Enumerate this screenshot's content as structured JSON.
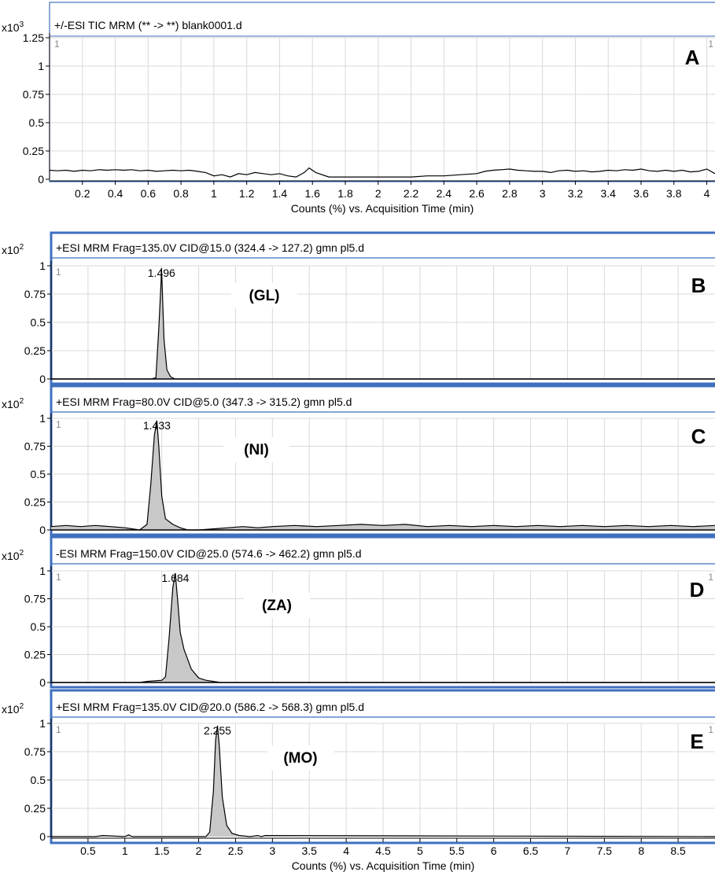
{
  "chart_data": [
    {
      "id": "A",
      "type": "line",
      "title": "+/-ESI TIC MRM (** -> **) blank0001.d",
      "panel_label": "A",
      "y_multiplier": "x10",
      "y_exponent": "3",
      "ylim": [
        0,
        1.25
      ],
      "yticks": [
        "0",
        "0.25",
        "0.5",
        "0.75",
        "1",
        "1.25"
      ],
      "xlim": [
        0,
        4.05
      ],
      "xticks": [
        "0.2",
        "0.4",
        "0.6",
        "0.8",
        "1",
        "1.2",
        "1.4",
        "1.6",
        "1.8",
        "2",
        "2.2",
        "2.4",
        "2.6",
        "2.8",
        "3",
        "3.2",
        "3.4",
        "3.6",
        "3.8",
        "4"
      ],
      "xlabel": "Counts (%) vs. Acquisition Time (min)",
      "corner_left": "1",
      "corner_right": "1",
      "grid": true,
      "series": [
        {
          "x": [
            0,
            0.05,
            0.1,
            0.15,
            0.2,
            0.25,
            0.3,
            0.35,
            0.4,
            0.45,
            0.5,
            0.55,
            0.6,
            0.65,
            0.7,
            0.75,
            0.8,
            0.85,
            0.9,
            0.95,
            1.0,
            1.05,
            1.1,
            1.15,
            1.2,
            1.25,
            1.3,
            1.35,
            1.4,
            1.45,
            1.5,
            1.55,
            1.58,
            1.62,
            1.7,
            1.8,
            1.9,
            2.0,
            2.1,
            2.2,
            2.3,
            2.4,
            2.5,
            2.6,
            2.65,
            2.7,
            2.75,
            2.8,
            2.85,
            2.9,
            2.95,
            3.0,
            3.05,
            3.1,
            3.15,
            3.2,
            3.25,
            3.3,
            3.35,
            3.4,
            3.45,
            3.5,
            3.55,
            3.6,
            3.65,
            3.7,
            3.75,
            3.8,
            3.85,
            3.9,
            3.95,
            4.0,
            4.05
          ],
          "y": [
            0.08,
            0.075,
            0.08,
            0.07,
            0.08,
            0.075,
            0.085,
            0.08,
            0.085,
            0.08,
            0.085,
            0.075,
            0.08,
            0.07,
            0.075,
            0.08,
            0.075,
            0.08,
            0.07,
            0.06,
            0.03,
            0.04,
            0.02,
            0.05,
            0.04,
            0.06,
            0.05,
            0.04,
            0.05,
            0.03,
            0.02,
            0.06,
            0.1,
            0.06,
            0.02,
            0.02,
            0.02,
            0.02,
            0.02,
            0.02,
            0.03,
            0.03,
            0.04,
            0.05,
            0.07,
            0.08,
            0.085,
            0.09,
            0.08,
            0.075,
            0.07,
            0.07,
            0.06,
            0.075,
            0.08,
            0.07,
            0.075,
            0.065,
            0.07,
            0.08,
            0.075,
            0.085,
            0.08,
            0.09,
            0.075,
            0.07,
            0.08,
            0.07,
            0.08,
            0.065,
            0.07,
            0.09,
            0.05
          ]
        }
      ]
    },
    {
      "id": "B",
      "type": "area",
      "title": "+ESI MRM Frag=135.0V CID@15.0 (324.4 -> 127.2) gmn pl5.d",
      "panel_label": "B",
      "compound": "(GL)",
      "peak_label": "1.496",
      "y_multiplier": "x10",
      "y_exponent": "2",
      "ylim": [
        0,
        1
      ],
      "yticks": [
        "0",
        "0.25",
        "0.5",
        "0.75",
        "1"
      ],
      "xlim": [
        0,
        9.0
      ],
      "corner_left": "1",
      "grid": true,
      "series": [
        {
          "x": [
            0,
            1.35,
            1.42,
            1.46,
            1.49,
            1.496,
            1.5,
            1.53,
            1.57,
            1.62,
            1.68,
            9.0
          ],
          "y": [
            0,
            0,
            0.01,
            0.45,
            0.85,
            0.98,
            0.92,
            0.35,
            0.08,
            0.02,
            0,
            0
          ]
        }
      ]
    },
    {
      "id": "C",
      "type": "area",
      "title": "+ESI MRM Frag=80.0V CID@5.0 (347.3 -> 315.2) gmn pl5.d",
      "panel_label": "C",
      "compound": "(NI)",
      "peak_label": "1.433",
      "y_multiplier": "x10",
      "y_exponent": "2",
      "ylim": [
        0,
        1
      ],
      "yticks": [
        "0",
        "0.25",
        "0.5",
        "0.75",
        "1"
      ],
      "xlim": [
        0,
        9.0
      ],
      "corner_left": "1",
      "grid": true,
      "series": [
        {
          "x": [
            0,
            0.2,
            0.4,
            0.6,
            0.8,
            1.0,
            1.1,
            1.2,
            1.3,
            1.35,
            1.4,
            1.433,
            1.46,
            1.5,
            1.55,
            1.65,
            1.75,
            1.85,
            2.0,
            2.2,
            2.4,
            2.6,
            2.8,
            3.0,
            3.3,
            3.6,
            3.9,
            4.2,
            4.5,
            4.8,
            5.1,
            5.4,
            5.7,
            6.0,
            6.3,
            6.6,
            6.9,
            7.2,
            7.5,
            7.8,
            8.1,
            8.4,
            8.7,
            9.0
          ],
          "y": [
            0.03,
            0.04,
            0.03,
            0.04,
            0.03,
            0.02,
            0.01,
            0.0,
            0.05,
            0.4,
            0.85,
            0.98,
            0.75,
            0.3,
            0.1,
            0.05,
            0.02,
            0.0,
            0.0,
            0.01,
            0.02,
            0.03,
            0.02,
            0.03,
            0.04,
            0.03,
            0.04,
            0.05,
            0.04,
            0.05,
            0.03,
            0.04,
            0.03,
            0.04,
            0.03,
            0.04,
            0.03,
            0.04,
            0.03,
            0.04,
            0.03,
            0.04,
            0.03,
            0.04
          ]
        }
      ]
    },
    {
      "id": "D",
      "type": "area",
      "title": "-ESI MRM Frag=150.0V CID@25.0 (574.6 -> 462.2) gmn pl5.d",
      "panel_label": "D",
      "compound": "(ZA)",
      "peak_label": "1.684",
      "y_multiplier": "x10",
      "y_exponent": "2",
      "ylim": [
        0,
        1
      ],
      "yticks": [
        "0",
        "0.25",
        "0.5",
        "0.75",
        "1"
      ],
      "xlim": [
        0,
        9.0
      ],
      "corner_left": "1",
      "corner_right": "1",
      "grid": true,
      "series": [
        {
          "x": [
            0,
            1.2,
            1.3,
            1.5,
            1.55,
            1.6,
            1.65,
            1.684,
            1.72,
            1.75,
            1.8,
            1.9,
            2.0,
            2.1,
            2.2,
            2.3,
            9.0
          ],
          "y": [
            0,
            0,
            0.01,
            0.02,
            0.05,
            0.4,
            0.85,
            0.98,
            0.7,
            0.45,
            0.3,
            0.12,
            0.04,
            0.02,
            0.01,
            0,
            0
          ]
        }
      ]
    },
    {
      "id": "E",
      "type": "area",
      "title": "+ESI MRM Frag=135.0V CID@20.0 (586.2 -> 568.3) gmn pl5.d",
      "panel_label": "E",
      "compound": "(MO)",
      "peak_label": "2.255",
      "y_multiplier": "x10",
      "y_exponent": "2",
      "ylim": [
        0,
        1
      ],
      "yticks": [
        "0",
        "0.25",
        "0.5",
        "0.75",
        "1"
      ],
      "xlim": [
        0,
        9.0
      ],
      "xticks": [
        "0.5",
        "1",
        "1.5",
        "2",
        "2.5",
        "3",
        "3.5",
        "4",
        "4.5",
        "5",
        "5.5",
        "6",
        "6.5",
        "7",
        "7.5",
        "8",
        "8.5"
      ],
      "xlabel": "Counts (%) vs. Acquisition Time (min)",
      "corner_left": "1",
      "corner_right": "1",
      "grid": true,
      "series": [
        {
          "x": [
            0,
            0.6,
            0.7,
            1.0,
            1.05,
            1.1,
            1.5,
            2.1,
            2.15,
            2.2,
            2.23,
            2.255,
            2.28,
            2.32,
            2.38,
            2.45,
            2.55,
            2.7,
            2.8,
            2.85,
            2.9,
            9.0
          ],
          "y": [
            0,
            0,
            0.01,
            0,
            0.015,
            0,
            0,
            0,
            0.04,
            0.4,
            0.85,
            0.98,
            0.8,
            0.35,
            0.1,
            0.03,
            0.01,
            0,
            0.01,
            0,
            0.01,
            0
          ]
        }
      ]
    }
  ]
}
